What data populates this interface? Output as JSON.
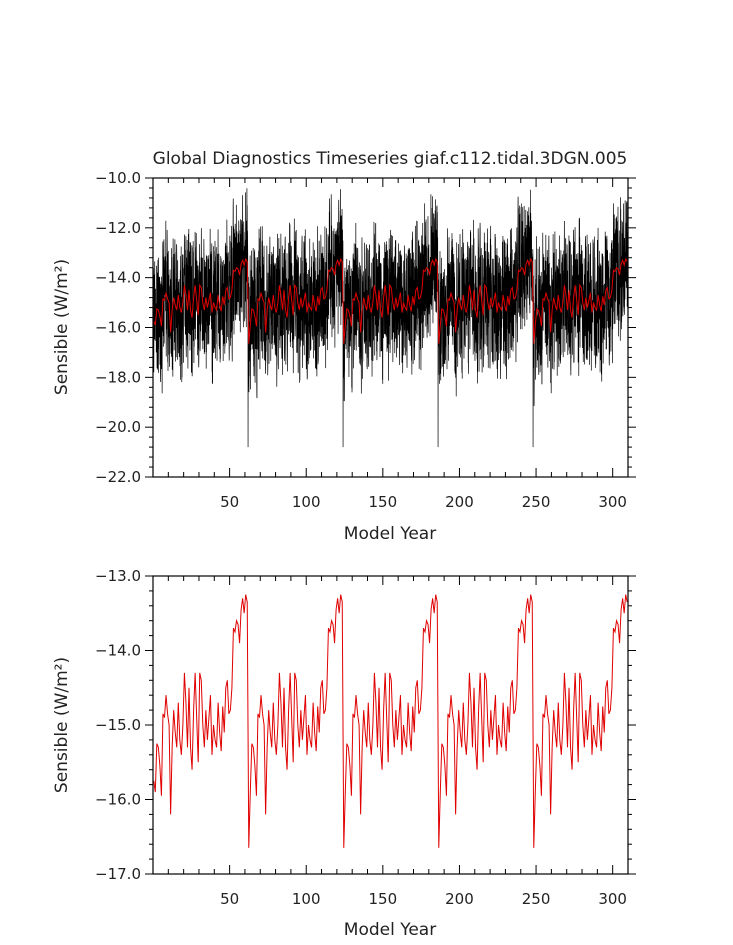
{
  "title": "Global Diagnostics Timeseries giaf.c112.tidal.3DGN.005",
  "colors": {
    "monthly": "#000000",
    "annual": "#e00000",
    "axes": "#000000"
  },
  "chart_data": [
    {
      "type": "line",
      "xlabel": "Model Year",
      "ylabel": "Sensible (W/m²)",
      "xlim": [
        0,
        310
      ],
      "ylim": [
        -22.0,
        -10.0
      ],
      "xticks": [
        50,
        100,
        150,
        200,
        250,
        300
      ],
      "xtick_labels": [
        "50",
        "100",
        "150",
        "200",
        "250",
        "300"
      ],
      "yticks": [
        -22.0,
        -20.0,
        -18.0,
        -16.0,
        -14.0,
        -12.0,
        -10.0
      ],
      "ytick_labels": [
        "−22.0",
        "−20.0",
        "−18.0",
        "−16.0",
        "−14.0",
        "−12.0",
        "−10.0"
      ],
      "grid": false,
      "cycle_years": 62,
      "cycles": 5,
      "series": [
        {
          "key": "monthly",
          "color": "#000000",
          "spread_per_year": 2.4,
          "first_year_spike": -20.8
        },
        {
          "key": "annual",
          "color": "#e00000",
          "values_per_cycle": [
            -15.75,
            -15.9,
            -15.25,
            -15.3,
            -15.55,
            -15.95,
            -14.85,
            -14.9,
            -14.6,
            -14.85,
            -15.0,
            -16.2,
            -15.3,
            -14.8,
            -15.1,
            -15.3,
            -14.7,
            -15.2,
            -15.4,
            -15.0,
            -14.3,
            -14.7,
            -15.3,
            -14.5,
            -15.3,
            -15.6,
            -14.8,
            -14.3,
            -14.9,
            -15.5,
            -14.3,
            -14.4,
            -15.0,
            -15.3,
            -14.8,
            -15.2,
            -14.9,
            -14.6,
            -15.4,
            -15.0,
            -15.2,
            -15.3,
            -14.7,
            -15.1,
            -15.35,
            -14.75,
            -15.1,
            -14.5,
            -14.4,
            -14.85,
            -14.8,
            -14.5,
            -13.7,
            -13.75,
            -13.6,
            -13.65,
            -13.9,
            -13.45,
            -13.3,
            -13.5,
            -13.25,
            -13.35
          ],
          "first_year_per_later_cycle": -16.65
        }
      ]
    },
    {
      "type": "line",
      "xlabel": "Model Year",
      "ylabel": "Sensible (W/m²)",
      "xlim": [
        0,
        310
      ],
      "ylim": [
        -17.0,
        -13.0
      ],
      "xticks": [
        50,
        100,
        150,
        200,
        250,
        300
      ],
      "xtick_labels": [
        "50",
        "100",
        "150",
        "200",
        "250",
        "300"
      ],
      "yticks": [
        -17.0,
        -16.0,
        -15.0,
        -14.0,
        -13.0
      ],
      "ytick_labels": [
        "−17.0",
        "−16.0",
        "−15.0",
        "−14.0",
        "−13.0"
      ],
      "grid": false,
      "cycle_years": 62,
      "cycles": 5,
      "series": [
        {
          "key": "annual",
          "color": "#e00000",
          "values_per_cycle": [
            -15.75,
            -15.9,
            -15.25,
            -15.3,
            -15.55,
            -15.95,
            -14.85,
            -14.9,
            -14.6,
            -14.85,
            -15.0,
            -16.2,
            -15.3,
            -14.8,
            -15.1,
            -15.3,
            -14.7,
            -15.2,
            -15.4,
            -15.0,
            -14.3,
            -14.7,
            -15.3,
            -14.5,
            -15.3,
            -15.6,
            -14.8,
            -14.3,
            -14.9,
            -15.5,
            -14.3,
            -14.4,
            -15.0,
            -15.3,
            -14.8,
            -15.2,
            -14.9,
            -14.6,
            -15.4,
            -15.0,
            -15.2,
            -15.3,
            -14.7,
            -15.1,
            -15.35,
            -14.75,
            -15.1,
            -14.5,
            -14.4,
            -14.85,
            -14.8,
            -14.5,
            -13.7,
            -13.75,
            -13.6,
            -13.65,
            -13.9,
            -13.45,
            -13.3,
            -13.5,
            -13.25,
            -13.35
          ],
          "first_year_per_later_cycle": -16.65
        }
      ]
    }
  ]
}
